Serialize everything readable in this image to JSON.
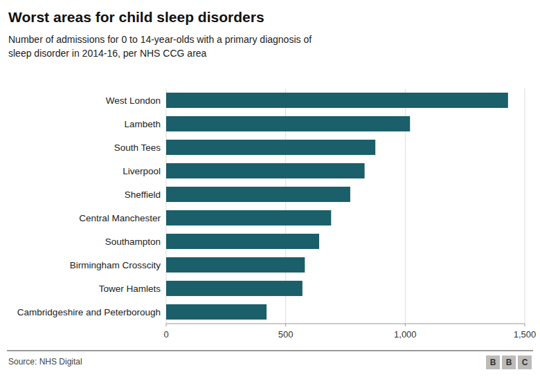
{
  "chart_data": {
    "type": "bar",
    "orientation": "horizontal",
    "title": "Worst areas for child sleep disorders",
    "subtitle": "Number of admissions for 0 to 14-year-olds with a primary diagnosis of\nsleep disorder in 2014-16, per NHS CCG area",
    "source": "Source: NHS Digital",
    "annotations": [
      "B",
      "B",
      "C"
    ],
    "categories": [
      "Cambridgeshire and Peterborough",
      "Tower Hamlets",
      "Birmingham Crosscity",
      "Southampton",
      "Central Manchester",
      "Sheffield",
      "Liverpool",
      "South Tees",
      "Lambeth",
      "West London"
    ],
    "values": [
      420,
      570,
      580,
      640,
      690,
      770,
      830,
      875,
      1020,
      1430
    ],
    "color": "#1a5f6a",
    "xlim": [
      0,
      1500
    ],
    "xticks": [
      0,
      500,
      {
        "value": 1000,
        "label": "1,000"
      },
      {
        "value": 1500,
        "label": "1,500"
      }
    ],
    "grid": true
  }
}
